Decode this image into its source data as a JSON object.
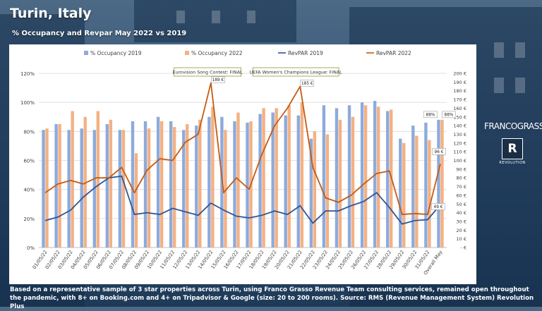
{
  "header": {
    "title": "Turin, Italy",
    "subtitle": "% Occupancy and Revpar May 2022 vs 2019"
  },
  "logo": {
    "name": "FRANCOGRASSO",
    "mark": "R",
    "sub": "REVOLUTION"
  },
  "footer": {
    "text": "Based on a representative sample of 3 star properties across Turin, using Franco Grasso Revenue Team consulting services, remained open throughout the pandemic, with 8+ on Booking.com and 4+ on Tripadvisor & Google (size: 20 to 200 rooms). Source: RMS (Revenue Management System) Revolution Plus"
  },
  "colors": {
    "occ2019": "#8eaadb",
    "occ2022": "#f4b183",
    "revpar2019": "#2f5597",
    "revpar2022": "#c55a11"
  },
  "chart_data": {
    "type": "bar",
    "categories": [
      "01/05/22",
      "02/05/22",
      "03/05/22",
      "04/05/22",
      "05/05/22",
      "06/05/22",
      "07/05/22",
      "08/05/22",
      "09/05/22",
      "10/05/22",
      "11/05/22",
      "12/05/22",
      "13/05/22",
      "14/05/22",
      "15/05/22",
      "16/05/22",
      "17/05/22",
      "18/05/22",
      "19/05/22",
      "20/05/22",
      "21/05/22",
      "22/05/22",
      "23/05/22",
      "24/05/22",
      "25/05/22",
      "26/05/22",
      "27/05/22",
      "28/05/22",
      "29/05/22",
      "30/05/22",
      "31/05/22",
      "Overall May"
    ],
    "series": [
      {
        "name": "% Occupancy 2019",
        "kind": "bar",
        "axis": "left",
        "values": [
          81,
          85,
          81,
          82,
          81,
          85,
          81,
          87,
          87,
          90,
          87,
          81,
          84,
          90,
          90,
          87,
          86,
          92,
          93,
          91,
          91,
          75,
          98,
          96,
          98,
          100,
          101,
          94,
          75,
          84,
          86,
          88
        ]
      },
      {
        "name": "% Occupancy 2022",
        "kind": "bar",
        "axis": "left",
        "values": [
          82,
          85,
          94,
          90,
          94,
          88,
          81,
          65,
          82,
          87,
          83,
          85,
          88,
          97,
          81,
          93,
          87,
          96,
          96,
          98,
          100,
          80,
          78,
          88,
          90,
          98,
          97,
          95,
          72,
          77,
          74,
          88
        ]
      },
      {
        "name": "RevPAR 2019",
        "kind": "line",
        "axis": "right",
        "values": [
          31,
          35,
          43,
          58,
          70,
          80,
          82,
          38,
          40,
          38,
          45,
          41,
          37,
          51,
          43,
          36,
          34,
          37,
          42,
          38,
          48,
          28,
          42,
          42,
          48,
          53,
          63,
          46,
          27,
          31,
          32,
          49
        ]
      },
      {
        "name": "RevPAR 2022",
        "kind": "line",
        "axis": "right",
        "values": [
          63,
          73,
          77,
          73,
          80,
          80,
          92,
          63,
          89,
          102,
          100,
          121,
          130,
          189,
          63,
          80,
          67,
          107,
          140,
          160,
          185,
          92,
          57,
          52,
          60,
          73,
          85,
          88,
          38,
          39,
          38,
          96
        ]
      }
    ],
    "left_axis": {
      "ylim": [
        0,
        120
      ],
      "ticks": [
        "0%",
        "20%",
        "40%",
        "60%",
        "80%",
        "100%",
        "120%"
      ]
    },
    "right_axis": {
      "ylim": [
        0,
        200
      ],
      "ticks": [
        "- €",
        "10 €",
        "20 €",
        "30 €",
        "40 €",
        "50 €",
        "60 €",
        "70 €",
        "80 €",
        "90 €",
        "100 €",
        "110 €",
        "120 €",
        "130 €",
        "140 €",
        "150 €",
        "160 €",
        "170 €",
        "180 €",
        "190 €",
        "200 €"
      ]
    },
    "grid": true,
    "legend_position": "top",
    "annotations": [
      {
        "text": "Eurovision Song Contest: FINAL",
        "category_index": 13
      },
      {
        "text": "UEFA Women's Champions League: FINAL",
        "category_index": 20
      }
    ],
    "data_labels": [
      {
        "text": "189 €",
        "category_index": 13,
        "series": "RevPAR 2022"
      },
      {
        "text": "185 €",
        "category_index": 20,
        "series": "RevPAR 2022"
      },
      {
        "text": "88%",
        "category_index": 31,
        "series": "% Occupancy 2019"
      },
      {
        "text": "88%",
        "category_index": 31,
        "series": "% Occupancy 2022"
      },
      {
        "text": "96 €",
        "category_index": 31,
        "series": "RevPAR 2022"
      },
      {
        "text": "49 €",
        "category_index": 31,
        "series": "RevPAR 2019"
      }
    ]
  }
}
